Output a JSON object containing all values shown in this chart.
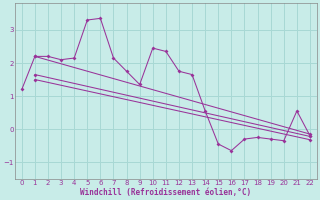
{
  "bg_color": "#c8ece8",
  "line_color": "#993399",
  "grid_color": "#a8d8d4",
  "xlabel": "Windchill (Refroidissement éolien,°C)",
  "xlabel_color": "#993399",
  "xlim": [
    -0.5,
    22.5
  ],
  "ylim": [
    -1.5,
    3.8
  ],
  "yticks": [
    -1,
    0,
    1,
    2,
    3
  ],
  "xticks": [
    0,
    1,
    2,
    3,
    4,
    5,
    6,
    7,
    8,
    9,
    10,
    11,
    12,
    13,
    14,
    15,
    16,
    17,
    18,
    19,
    20,
    21,
    22
  ],
  "main_x": [
    0,
    1,
    2,
    3,
    4,
    5,
    6,
    7,
    8,
    9,
    10,
    11,
    12,
    13,
    14,
    15,
    16,
    17,
    18,
    19,
    20,
    21,
    22
  ],
  "main_y": [
    1.2,
    2.2,
    2.2,
    2.1,
    2.15,
    3.3,
    3.35,
    2.15,
    1.75,
    1.35,
    2.45,
    2.35,
    1.75,
    1.65,
    0.55,
    -0.45,
    -0.65,
    -0.3,
    -0.25,
    -0.3,
    -0.35,
    0.55,
    -0.2
  ],
  "trend1_x": [
    1,
    22
  ],
  "trend1_y": [
    2.2,
    -0.15
  ],
  "trend2_x": [
    1,
    22
  ],
  "trend2_y": [
    1.65,
    -0.22
  ],
  "trend3_x": [
    1,
    22
  ],
  "trend3_y": [
    1.5,
    -0.32
  ]
}
